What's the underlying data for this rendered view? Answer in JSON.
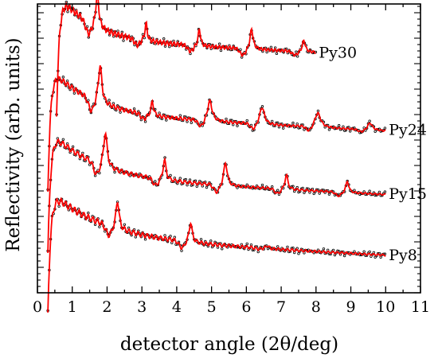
{
  "chart_data": {
    "type": "line",
    "xlabel": "detector angle (2θ/deg)",
    "ylabel": "Reflectivity (arb. units)",
    "xlim": [
      0,
      11
    ],
    "x_ticks": [
      "0",
      "1",
      "2",
      "3",
      "4",
      "5",
      "6",
      "7",
      "8",
      "9",
      "10",
      "11"
    ],
    "y_ticks_labeled": false,
    "legend": "none",
    "fit_color": "#ff0000",
    "data_color": "#000000",
    "series": [
      {
        "name": "Py30",
        "x_start": 0.55,
        "x_end": 8.0,
        "offset": 0.86,
        "decay": 0.35,
        "fringe_period": 0.1,
        "fringe_amplitude": 0.012,
        "peaks": [
          {
            "x": 1.72,
            "h": 0.12,
            "w": 0.05
          },
          {
            "x": 3.12,
            "h": 0.06,
            "w": 0.04
          },
          {
            "x": 4.65,
            "h": 0.06,
            "w": 0.04
          },
          {
            "x": 6.15,
            "h": 0.07,
            "w": 0.05
          },
          {
            "x": 7.65,
            "h": 0.04,
            "w": 0.05
          }
        ]
      },
      {
        "name": "Py24",
        "x_start": 0.3,
        "x_end": 10.0,
        "offset": 0.6,
        "decay": 0.28,
        "fringe_period": 0.12,
        "fringe_amplitude": 0.01,
        "peaks": [
          {
            "x": 1.8,
            "h": 0.13,
            "w": 0.06
          },
          {
            "x": 3.3,
            "h": 0.05,
            "w": 0.04
          },
          {
            "x": 4.95,
            "h": 0.07,
            "w": 0.08
          },
          {
            "x": 6.45,
            "h": 0.06,
            "w": 0.08
          },
          {
            "x": 8.05,
            "h": 0.05,
            "w": 0.1
          },
          {
            "x": 9.55,
            "h": 0.025,
            "w": 0.08
          }
        ]
      },
      {
        "name": "Py15",
        "x_start": 0.3,
        "x_end": 10.0,
        "offset": 0.38,
        "decay": 0.26,
        "fringe_period": 0.14,
        "fringe_amplitude": 0.01,
        "peaks": [
          {
            "x": 1.95,
            "h": 0.12,
            "w": 0.06
          },
          {
            "x": 3.65,
            "h": 0.07,
            "w": 0.05
          },
          {
            "x": 5.4,
            "h": 0.08,
            "w": 0.06
          },
          {
            "x": 7.15,
            "h": 0.05,
            "w": 0.05
          },
          {
            "x": 8.9,
            "h": 0.04,
            "w": 0.05
          }
        ]
      },
      {
        "name": "Py8",
        "x_start": 0.3,
        "x_end": 10.0,
        "offset": 0.17,
        "decay": 0.22,
        "fringe_period": 0.13,
        "fringe_amplitude": 0.012,
        "peaks": [
          {
            "x": 2.3,
            "h": 0.1,
            "w": 0.05
          },
          {
            "x": 4.4,
            "h": 0.07,
            "w": 0.05
          },
          {
            "x": 6.6,
            "h": 0.01,
            "w": 0.05
          }
        ]
      }
    ]
  }
}
